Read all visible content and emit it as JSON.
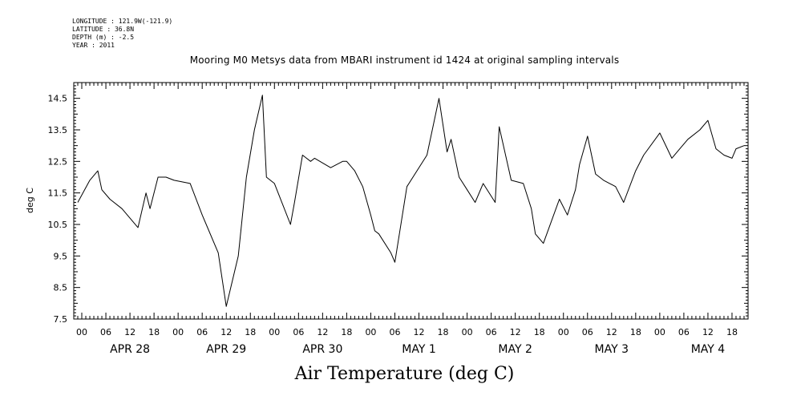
{
  "meta": {
    "longitude": "LONGITUDE : 121.9W(-121.9)",
    "latitude": "LATITUDE : 36.8N",
    "depth": "DEPTH (m) : -2.5",
    "year": "YEAR : 2011"
  },
  "chart_data": {
    "type": "line",
    "title": "Mooring M0 Metsys data from MBARI instrument id 1424 at original sampling intervals",
    "xlabel": "Air Temperature (deg C)",
    "ylabel": "deg C",
    "ylim": [
      7.5,
      15.0
    ],
    "yticks": [
      "7.5",
      "8.5",
      "9.5",
      "10.5",
      "11.5",
      "12.5",
      "13.5",
      "14.5"
    ],
    "xlim_hours": [
      -2,
      166
    ],
    "hour_labels": [
      "00",
      "06",
      "12",
      "18"
    ],
    "day_labels": [
      "APR 28",
      "APR 29",
      "APR 30",
      "MAY  1",
      "MAY  2",
      "MAY  3",
      "MAY  4"
    ],
    "grid": false,
    "series": [
      {
        "x_hours_from_apr28": [
          -1,
          2,
          4,
          5,
          7,
          10,
          14,
          16,
          17,
          19,
          21,
          23,
          27,
          30,
          34,
          36,
          39,
          41,
          43,
          45,
          46,
          48,
          52,
          53,
          55,
          57,
          58,
          62,
          65,
          66,
          68,
          70,
          72,
          73,
          74,
          77,
          78,
          81,
          86,
          89,
          91,
          92,
          94,
          96,
          98,
          100,
          103,
          104,
          107,
          110,
          112,
          113,
          115,
          119,
          121,
          123,
          124,
          126,
          128,
          130,
          133,
          135,
          138,
          140,
          144,
          147,
          149,
          151,
          154,
          156,
          158,
          160,
          162,
          163,
          165
        ],
        "values": [
          11.2,
          11.9,
          12.2,
          11.6,
          11.3,
          11.0,
          10.4,
          11.5,
          11.0,
          12.0,
          12.0,
          11.9,
          11.8,
          10.8,
          9.6,
          7.9,
          9.5,
          12.0,
          13.5,
          14.6,
          12.0,
          11.8,
          10.5,
          11.2,
          12.7,
          12.5,
          12.6,
          12.3,
          12.5,
          12.5,
          12.2,
          11.7,
          10.8,
          10.3,
          10.2,
          9.6,
          9.3,
          11.7,
          12.7,
          14.5,
          12.8,
          13.2,
          12.0,
          11.6,
          11.2,
          11.8,
          11.2,
          13.6,
          11.9,
          11.8,
          11.0,
          10.2,
          9.9,
          11.3,
          10.8,
          11.6,
          12.4,
          13.3,
          12.1,
          11.9,
          11.7,
          11.2,
          12.2,
          12.7,
          13.4,
          12.6,
          12.9,
          13.2,
          13.5,
          13.8,
          12.9,
          12.7,
          12.6,
          12.9,
          13.0
        ]
      }
    ]
  }
}
